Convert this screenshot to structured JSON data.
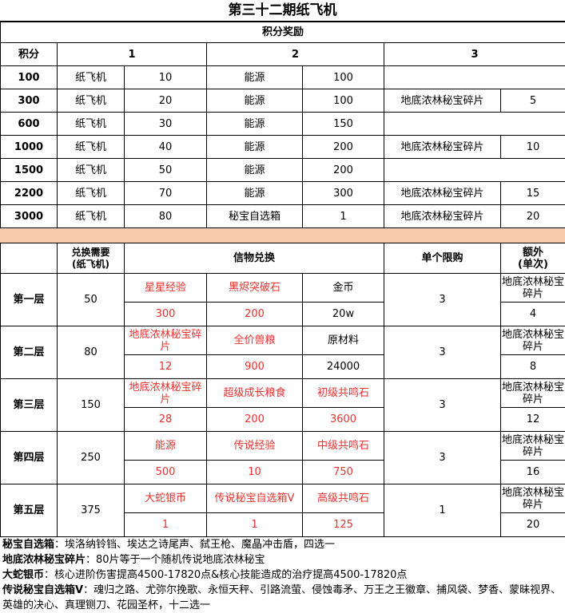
{
  "title": "第三十二期纸飞机",
  "rewards": {
    "section_title": "积分奖励",
    "headers": [
      "积分",
      "1",
      "2",
      "3"
    ],
    "rows": [
      [
        "100",
        "纸飞机",
        "10",
        "能源",
        "100",
        "",
        ""
      ],
      [
        "300",
        "纸飞机",
        "20",
        "能源",
        "100",
        "地底浓林秘宝碎片",
        "5"
      ],
      [
        "600",
        "纸飞机",
        "30",
        "能源",
        "150",
        "",
        ""
      ],
      [
        "1000",
        "纸飞机",
        "40",
        "能源",
        "200",
        "地底浓林秘宝碎片",
        "10"
      ],
      [
        "1500",
        "纸飞机",
        "50",
        "能源",
        "200",
        "",
        ""
      ],
      [
        "2200",
        "纸飞机",
        "70",
        "能源",
        "300",
        "地底浓林秘宝碎片",
        "15"
      ],
      [
        "3000",
        "纸飞机",
        "80",
        "秘宝自选箱",
        "1",
        "地底浓林秘宝碎片",
        "20"
      ]
    ]
  },
  "exchange": {
    "headers": [
      "",
      "兑换需要\n(纸飞机)",
      "信物兑换",
      "单个限购",
      "额外\n(单次)"
    ],
    "tiers": [
      {
        "name": "第一层",
        "cost": "50",
        "items": [
          {
            "name": "星星经验",
            "qty": "300",
            "red": true
          },
          {
            "name": "黑烬突破石",
            "qty": "200",
            "red": true
          },
          {
            "name": "金币",
            "qty": "20w",
            "red": false
          }
        ],
        "limit": "3",
        "extra_name": "地底浓林秘宝碎片",
        "extra_qty": "4"
      },
      {
        "name": "第二层",
        "cost": "80",
        "items": [
          {
            "name": "地底浓林秘宝碎片",
            "qty": "12",
            "red": true
          },
          {
            "name": "全价兽粮",
            "qty": "900",
            "red": true
          },
          {
            "name": "原材料",
            "qty": "24000",
            "red": false
          }
        ],
        "limit": "3",
        "extra_name": "地底浓林秘宝碎片",
        "extra_qty": "8"
      },
      {
        "name": "第三层",
        "cost": "150",
        "items": [
          {
            "name": "地底浓林秘宝碎片",
            "qty": "28",
            "red": true
          },
          {
            "name": "超级成长粮食",
            "qty": "200",
            "red": true
          },
          {
            "name": "初级共鸣石",
            "qty": "3600",
            "red": true
          }
        ],
        "limit": "3",
        "extra_name": "地底浓林秘宝碎片",
        "extra_qty": "12"
      },
      {
        "name": "第四层",
        "cost": "250",
        "items": [
          {
            "name": "能源",
            "qty": "500",
            "red": true
          },
          {
            "name": "传说经验",
            "qty": "10",
            "red": true
          },
          {
            "name": "中级共鸣石",
            "qty": "750",
            "red": true
          }
        ],
        "limit": "3",
        "extra_name": "地底浓林秘宝碎片",
        "extra_qty": "16"
      },
      {
        "name": "第五层",
        "cost": "375",
        "items": [
          {
            "name": "大蛇银币",
            "qty": "1",
            "red": true
          },
          {
            "name": "传说秘宝自选箱V",
            "qty": "1",
            "red": true
          },
          {
            "name": "高级共鸣石",
            "qty": "125",
            "red": true
          }
        ],
        "limit": "1",
        "extra_name": "地底浓林秘宝碎片",
        "extra_qty": "20"
      }
    ]
  },
  "notes": [
    {
      "key": "秘宝自选箱",
      "text": "：埃洛纳铃铛、埃达之诗尾声、弑王枪、魔晶冲击盾，四选一"
    },
    {
      "key": "地底浓林秘宝碎片",
      "text": "：80片等于一个随机传说地底浓林秘宝"
    },
    {
      "key": "大蛇银币",
      "text": "：核心进阶伤害提高4500-17820点&核心技能造成的治疗提高4500-17820点"
    },
    {
      "key": "传说秘宝自选箱V",
      "text": "：魂归之路、尤弥尔挽歌、永恒天秤、引路流萤、侵蚀毒矛、万王之王徽章、捕风袋、梦香、蒙昧视界、英雄的决心、真理铡刀、花园圣杯，十二选一"
    }
  ],
  "colors": {
    "red": "#e8322e",
    "band": "#f8cbad"
  }
}
